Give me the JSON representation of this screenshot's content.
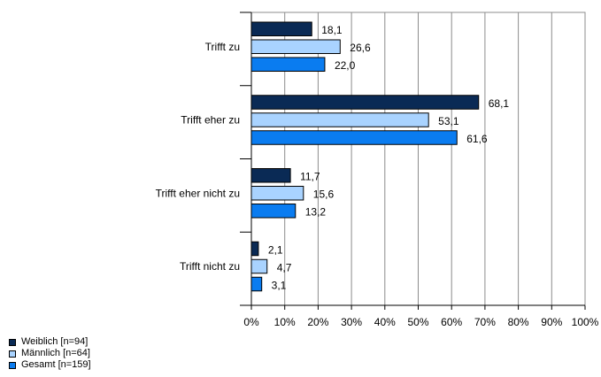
{
  "chart_data": {
    "type": "bar",
    "orientation": "horizontal",
    "categories": [
      "Trifft zu",
      "Trifft eher zu",
      "Trifft eher nicht zu",
      "Trifft nicht zu"
    ],
    "series": [
      {
        "name": "Weiblich [n=94]",
        "color": "#0a2a55",
        "values": [
          18.1,
          68.1,
          11.7,
          2.1
        ],
        "labels": [
          "18,1",
          "68,1",
          "11,7",
          "2,1"
        ]
      },
      {
        "name": "Männlich [n=64]",
        "color": "#a9d3ff",
        "values": [
          26.6,
          53.1,
          15.6,
          4.7
        ],
        "labels": [
          "26,6",
          "53,1",
          "15,6",
          "4,7"
        ]
      },
      {
        "name": "Gesamt [n=159]",
        "color": "#0a7cf0",
        "values": [
          22.0,
          61.6,
          13.2,
          3.1
        ],
        "labels": [
          "22,0",
          "61,6",
          "13,2",
          "3,1"
        ]
      }
    ],
    "xlim": [
      0,
      100
    ],
    "ticks": [
      "0%",
      "10%",
      "20%",
      "30%",
      "40%",
      "50%",
      "60%",
      "70%",
      "80%",
      "90%",
      "100%"
    ],
    "grid": true,
    "legend_position": "bottom-left"
  }
}
